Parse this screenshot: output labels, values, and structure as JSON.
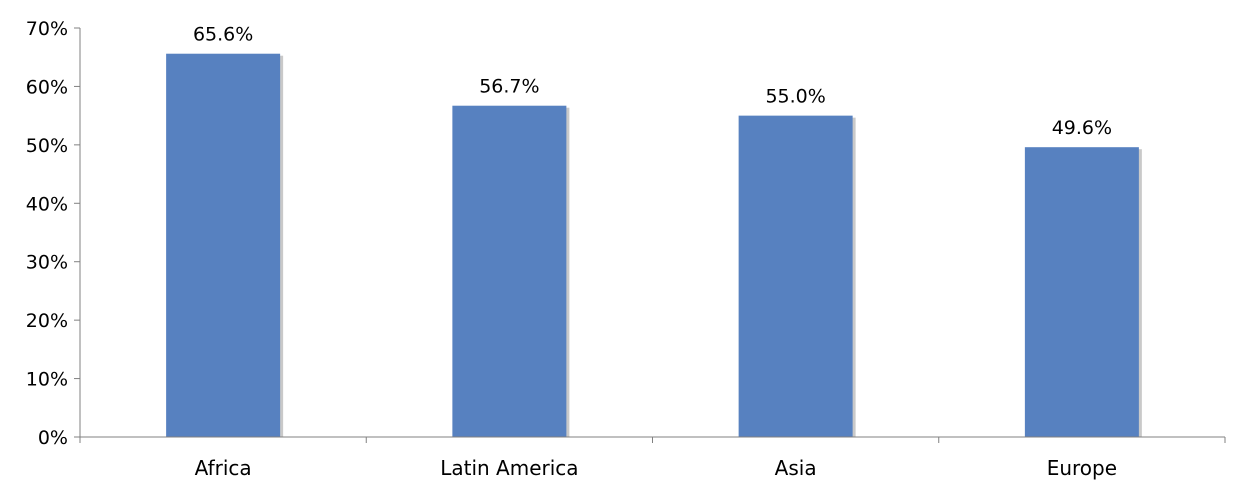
{
  "chart_data": {
    "type": "bar",
    "title": "",
    "xlabel": "",
    "ylabel": "",
    "categories": [
      "Africa",
      "Latin America",
      "Asia",
      "Europe"
    ],
    "values": [
      65.6,
      56.7,
      55.0,
      49.6
    ],
    "data_labels": [
      "65.6%",
      "56.7%",
      "55.0%",
      "49.6%"
    ],
    "ylim": [
      0,
      70
    ],
    "yticks": [
      0,
      10,
      20,
      30,
      40,
      50,
      60,
      70
    ],
    "ytick_labels": [
      "0%",
      "10%",
      "20%",
      "30%",
      "40%",
      "50%",
      "60%",
      "70%"
    ],
    "grid": false,
    "legend": "none",
    "bar_color": "#5781C0",
    "bar_shadow_color": "#C9C9C9"
  }
}
